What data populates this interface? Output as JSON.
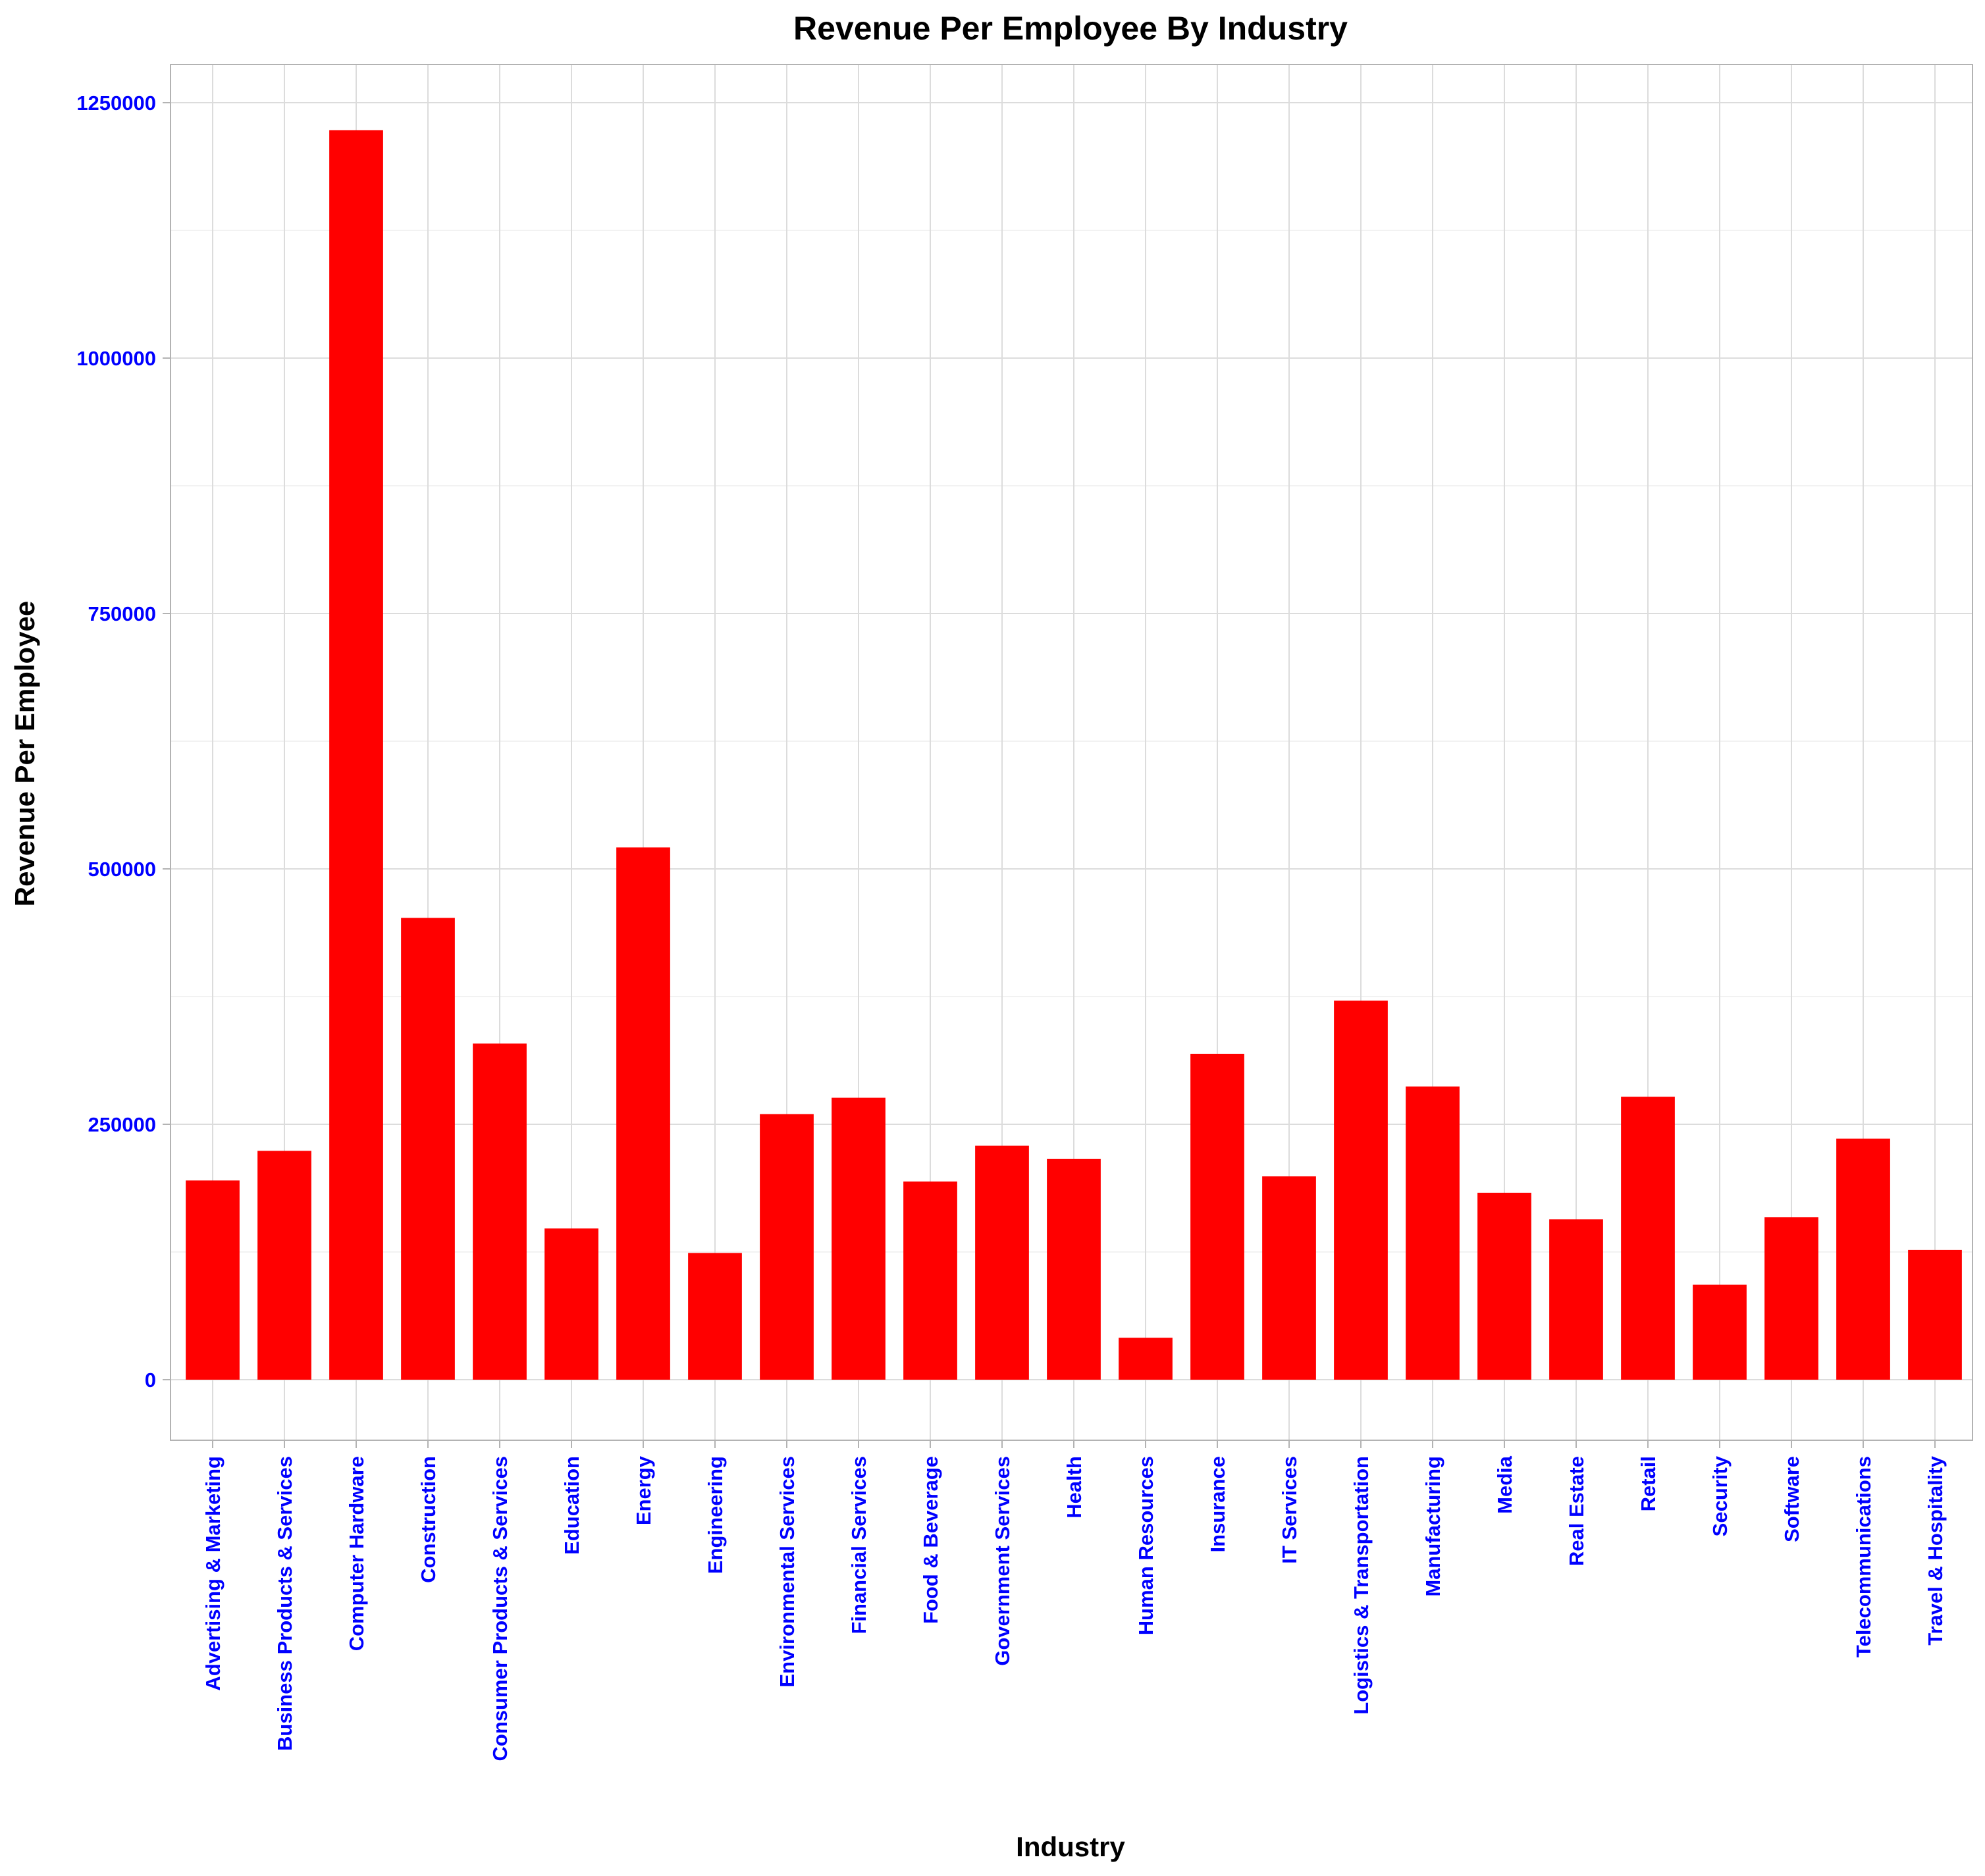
{
  "colors": {
    "bar": "#ff0000",
    "tick_label": "#0000ff",
    "grid_major": "#dcdcdc",
    "grid_minor": "#eeeeee",
    "panel_border": "#b3b3b3",
    "text": "#000000"
  },
  "chart_data": {
    "type": "bar",
    "title": "Revenue Per Employee By Industry",
    "xlabel": "Industry",
    "ylabel": "Revenue Per Employee",
    "ylim": [
      -60000,
      1285000
    ],
    "yticks": [
      0,
      250000,
      500000,
      750000,
      1000000,
      1250000
    ],
    "ytick_labels": [
      "0",
      "250000",
      "500000",
      "750000",
      "1000000",
      "1250000"
    ],
    "grid": true,
    "legend": "none",
    "categories": [
      "Advertising & Marketing",
      "Business Products & Services",
      "Computer Hardware",
      "Construction",
      "Consumer Products & Services",
      "Education",
      "Energy",
      "Engineering",
      "Environmental Services",
      "Financial Services",
      "Food & Beverage",
      "Government Services",
      "Health",
      "Human Resources",
      "Insurance",
      "IT Services",
      "Logistics & Transportation",
      "Manufacturing",
      "Media",
      "Real Estate",
      "Retail",
      "Security",
      "Software",
      "Telecommunications",
      "Travel & Hospitality"
    ],
    "values": [
      195000,
      224000,
      1223000,
      452000,
      329000,
      148000,
      521000,
      124000,
      260000,
      276000,
      194000,
      229000,
      216000,
      41000,
      319000,
      199000,
      371000,
      287000,
      183000,
      157000,
      277000,
      93000,
      159000,
      236000,
      127000
    ]
  }
}
